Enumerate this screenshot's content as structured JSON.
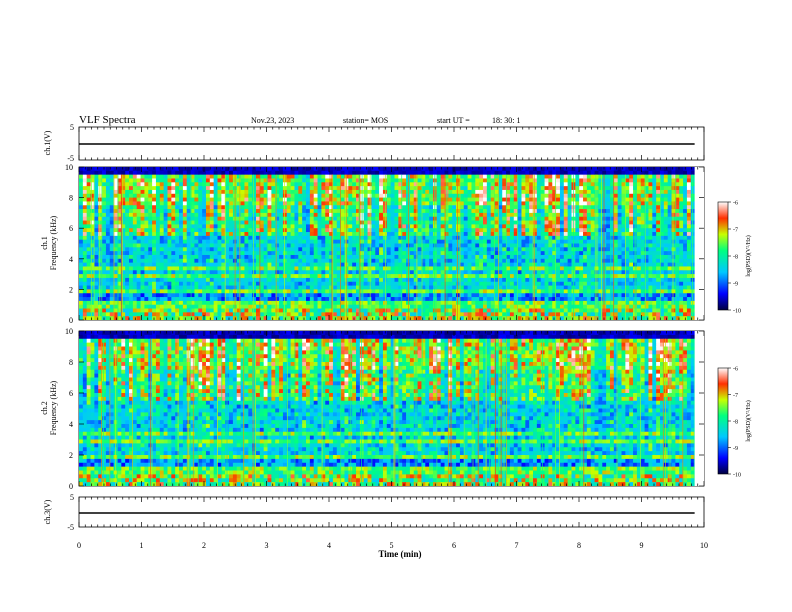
{
  "header": {
    "title": "VLF Spectra",
    "date": "Nov.23, 2023",
    "station": "station= MOS",
    "start": "start UT =",
    "start_time": "18: 30: 1"
  },
  "chart_data": {
    "type": "heatmap",
    "title": "VLF Spectra",
    "x_axis": {
      "label": "Time (min)",
      "range": [
        0,
        10
      ],
      "ticks": [
        0,
        1,
        2,
        3,
        4,
        5,
        6,
        7,
        8,
        9,
        10
      ],
      "data_end": 9.85
    },
    "panels": [
      {
        "name": "ch1-voltage",
        "ylabel": "ch.1(V)",
        "yticks": [
          "5",
          "-5"
        ],
        "ylim": [
          -5,
          5
        ],
        "level": 0
      },
      {
        "name": "ch1-spectrogram",
        "ylabel_ch": "ch.1",
        "ylabel": "Frequency (kHz)",
        "ylim": [
          0,
          10
        ],
        "yticks": [
          "0",
          "2",
          "4",
          "6",
          "8",
          "10"
        ],
        "seed": 7
      },
      {
        "name": "ch2-spectrogram",
        "ylabel_ch": "ch.2",
        "ylabel": "Frequency (kHz)",
        "ylim": [
          0,
          10
        ],
        "yticks": [
          "0",
          "2",
          "4",
          "6",
          "8",
          "10"
        ],
        "seed": 19
      },
      {
        "name": "ch3-voltage",
        "ylabel": "ch.3(V)",
        "yticks": [
          "5",
          "-5"
        ],
        "ylim": [
          -5,
          5
        ],
        "level": 0
      }
    ],
    "colorbar": {
      "label": "log(PSD)(V²/Hz)",
      "range": [
        -10,
        -6
      ],
      "ticks": [
        "-6",
        "-7",
        "-8",
        "-9",
        "-10"
      ],
      "colors": [
        "#000040",
        "#0000ff",
        "#00c8ff",
        "#00ff80",
        "#c8ff00",
        "#ff3000",
        "#ffffff"
      ]
    }
  }
}
